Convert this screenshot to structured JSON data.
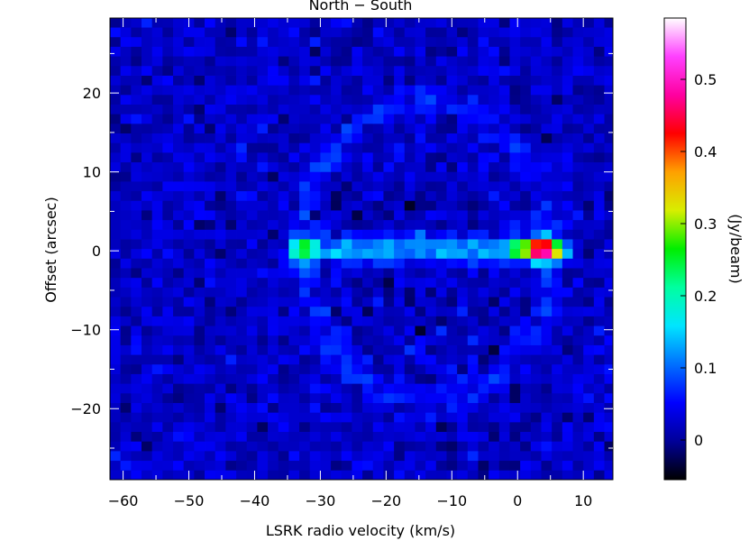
{
  "chart_data": {
    "type": "heatmap",
    "title": "North − South",
    "xlabel": "LSRK radio velocity  (km/s)",
    "ylabel": "Offset (arcsec)",
    "xlim": [
      -62,
      14.5
    ],
    "ylim": [
      -29,
      29.5
    ],
    "x_ticks": [
      -60,
      -50,
      -40,
      -30,
      -20,
      -10,
      0,
      10
    ],
    "x_tick_labels": [
      "−60",
      "−50",
      "−40",
      "−30",
      "−20",
      "−10",
      "0",
      "10"
    ],
    "y_ticks": [
      -20,
      -10,
      0,
      10,
      20
    ],
    "y_tick_labels": [
      "−20",
      "−10",
      "0",
      "10",
      "20"
    ],
    "colorbar": {
      "label": "(Jy/beam)",
      "range": [
        -0.055,
        0.585
      ],
      "ticks": [
        0,
        0.1,
        0.2,
        0.3,
        0.4,
        0.5
      ],
      "tick_labels": [
        "0",
        "0.1",
        "0.2",
        "0.3",
        "0.4",
        "0.5"
      ],
      "stops": [
        "#000000",
        "#000099",
        "#0000ff",
        "#0070ff",
        "#00e5ff",
        "#00ffa0",
        "#00ee00",
        "#d8ee00",
        "#ffa000",
        "#ff0000",
        "#ff00a0",
        "#ff40ff",
        "#ffffff"
      ]
    },
    "features": [
      {
        "kind": "ridge",
        "x_range": [
          -36,
          7.5
        ],
        "y": 0.2,
        "peak": 0.12
      },
      {
        "kind": "peak",
        "x": -32,
        "y": 0.2,
        "value": 0.28
      },
      {
        "kind": "peak",
        "x": 3.5,
        "y": 0.2,
        "value": 0.58
      },
      {
        "kind": "peak",
        "x": 0.5,
        "y": 0.2,
        "value": 0.3
      },
      {
        "kind": "peak",
        "x": 6.5,
        "y": 0.2,
        "value": 0.3
      },
      {
        "kind": "ellipse-ring",
        "center_x": -14,
        "half_width": 19,
        "half_height": 19,
        "value": 0.04
      }
    ]
  }
}
